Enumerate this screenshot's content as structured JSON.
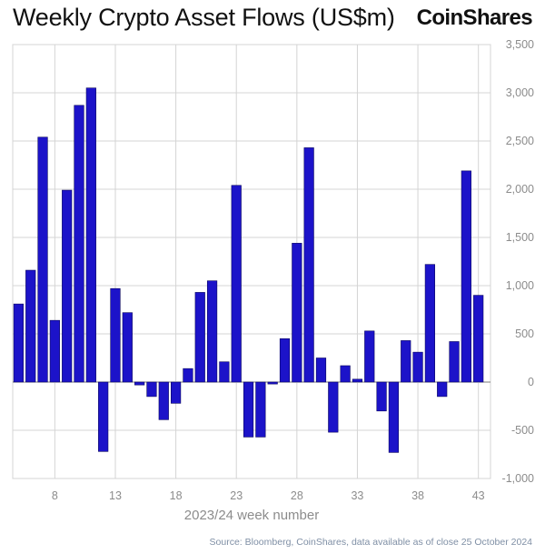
{
  "header": {
    "title": "Weekly Crypto Asset Flows (US$m)",
    "logo": "CoinShares"
  },
  "footer": {
    "source": "Source: Bloomberg, CoinShares, data available as of close 25 October 2024"
  },
  "colors": {
    "bar": "#1c13c9",
    "bar_edge": "#0a0660",
    "grid": "#d4d4d4",
    "zero_line": "#7a7a7a"
  },
  "chart_data": {
    "type": "bar",
    "title": "Weekly Crypto Asset Flows (US$m)",
    "xlabel": "2023/24 week number",
    "ylabel": "",
    "y_axis_side": "right",
    "ylim": [
      -1000,
      3500
    ],
    "y_ticks": [
      3500,
      3000,
      2500,
      2000,
      1500,
      1000,
      500,
      0,
      -500,
      -1000
    ],
    "y_tick_labels": [
      "3,500",
      "3,000",
      "2,500",
      "2,000",
      "1,500",
      "1,000",
      "500",
      "0",
      "-500",
      "-1,000"
    ],
    "x_ticks": [
      8,
      13,
      18,
      23,
      28,
      33,
      38,
      43
    ],
    "x_tick_labels": [
      "8",
      "13",
      "18",
      "23",
      "28",
      "33",
      "38",
      "43"
    ],
    "x_first": 5,
    "x_last": 43,
    "grid": true,
    "legend": "none",
    "values": [
      810,
      1160,
      2540,
      640,
      1990,
      2870,
      3050,
      -720,
      970,
      720,
      -30,
      -150,
      -390,
      -220,
      140,
      930,
      1050,
      210,
      2040,
      -570,
      -570,
      -20,
      450,
      1440,
      2430,
      250,
      -520,
      170,
      30,
      530,
      -300,
      -730,
      430,
      310,
      1220,
      -150,
      420,
      2190,
      900
    ]
  }
}
